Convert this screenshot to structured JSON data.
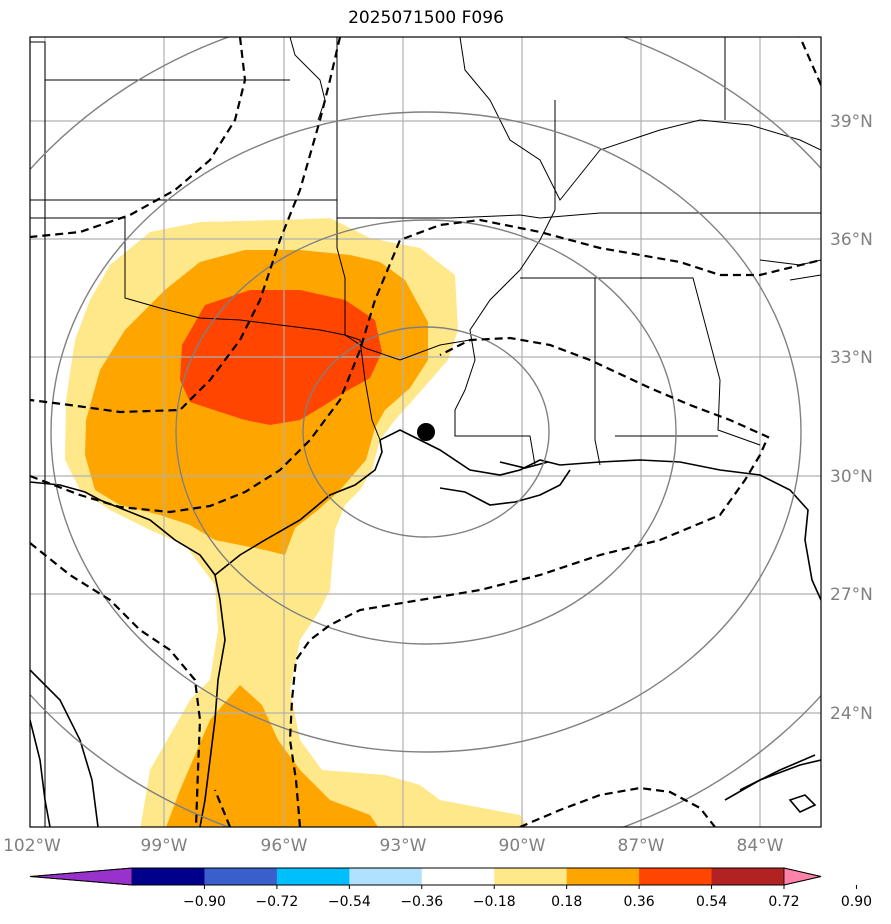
{
  "title": "2025071500 F096",
  "lon_labels": [
    "102°W",
    "99°W",
    "96°W",
    "93°W",
    "90°W",
    "87°W",
    "84°W"
  ],
  "lat_labels": [
    "39°N",
    "36°N",
    "33°N",
    "30°N",
    "27°N",
    "24°N"
  ],
  "colorbar": {
    "colors": [
      "#9932cc",
      "#00008b",
      "#3a5fcd",
      "#00bfff",
      "#b0e2ff",
      "#ffffff",
      "#ffe88a",
      "#ffa500",
      "#ff4500",
      "#b22222",
      "#ff82ab"
    ],
    "tick_labels": [
      "−0.90",
      "−0.72",
      "−0.54",
      "−0.36",
      "−0.18",
      "0.18",
      "0.36",
      "0.54",
      "0.72",
      "0.90"
    ]
  },
  "center_marker": {
    "lon": -92.5,
    "lat": 31.1
  }
}
